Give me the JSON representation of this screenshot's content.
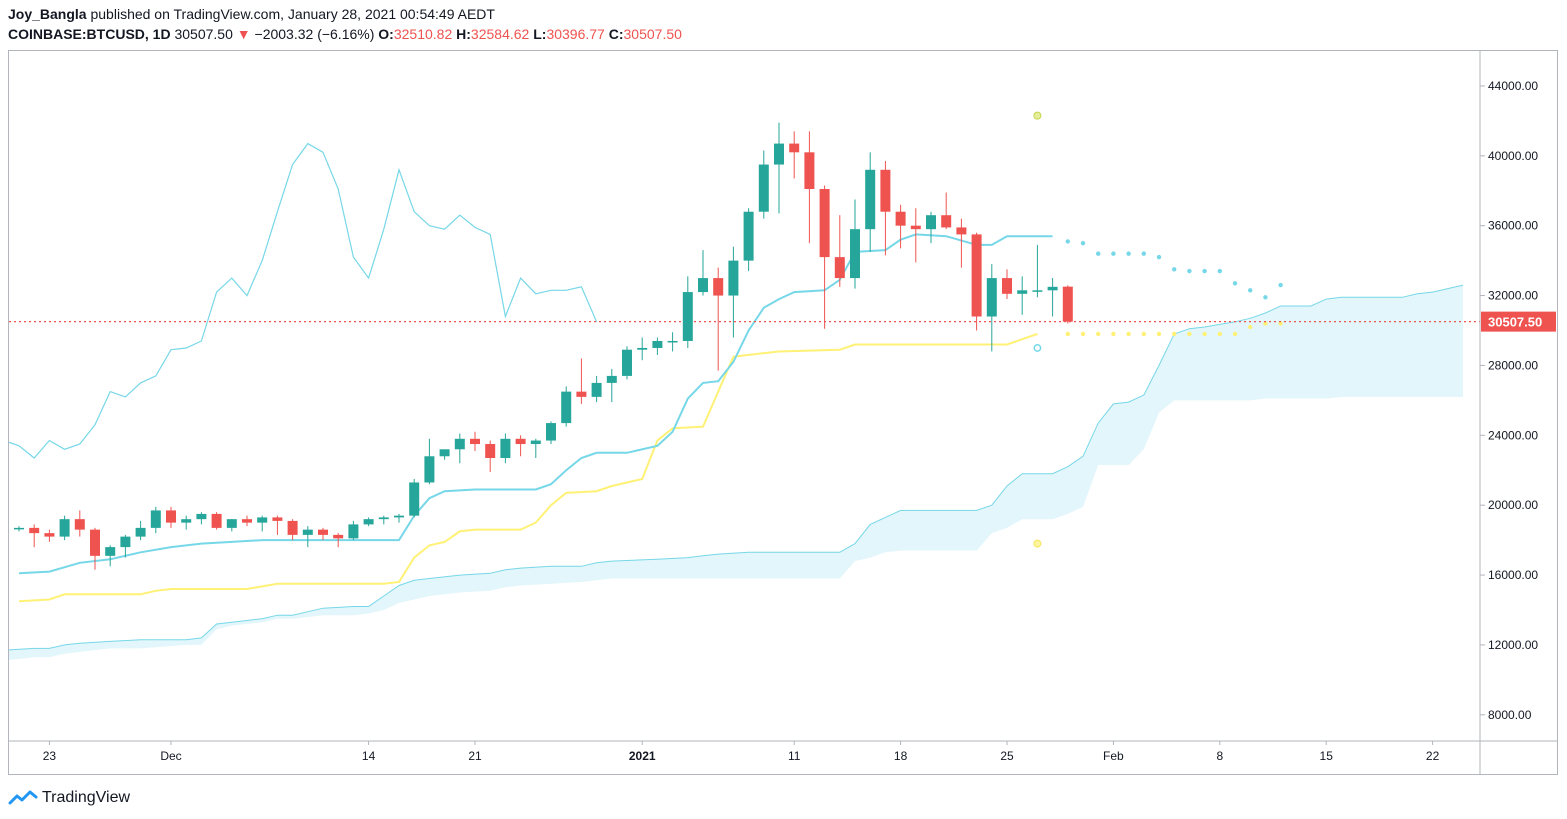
{
  "header": {
    "user": "Joy_Bangla",
    "published": "published on TradingView.com, January 28, 2021 00:54:49 AEDT",
    "symbol": "COINBASE:BTCUSD, 1D",
    "last": "30507.50",
    "change": "−2003.32 (−6.16%)",
    "o_label": "O:",
    "o_value": "32510.82",
    "h_label": "H:",
    "h_value": "32584.62",
    "l_label": "L:",
    "l_value": "30396.77",
    "c_label": "C:",
    "c_value": "30507.50"
  },
  "brand": {
    "name": "TradingView"
  },
  "colors": {
    "up": "#26a69a",
    "down": "#ef5350",
    "cyan": "#76d7e8",
    "yellow": "#fff176",
    "cloud": "#e3f6fb",
    "price_line": "#ef5350",
    "axis_text": "#131722"
  },
  "chart_data": {
    "type": "candlestick",
    "title": "",
    "ylim": [
      6500,
      46000
    ],
    "y_ticks": [
      8000,
      12000,
      16000,
      20000,
      24000,
      28000,
      32000,
      36000,
      40000,
      44000
    ],
    "y_tick_labels": [
      "8000.00",
      "12000.00",
      "16000.00",
      "20000.00",
      "24000.00",
      "28000.00",
      "32000.00",
      "36000.00",
      "40000.00",
      "44000.00"
    ],
    "x_ticks": [
      {
        "i": 2,
        "label": "23"
      },
      {
        "i": 10,
        "label": "Dec"
      },
      {
        "i": 23,
        "label": "14"
      },
      {
        "i": 30,
        "label": "21"
      },
      {
        "i": 41,
        "label": "2021"
      },
      {
        "i": 51,
        "label": "11"
      },
      {
        "i": 58,
        "label": "18"
      },
      {
        "i": 65,
        "label": "25"
      },
      {
        "i": 72,
        "label": "Feb"
      },
      {
        "i": 79,
        "label": "8"
      },
      {
        "i": 86,
        "label": "15"
      },
      {
        "i": 93,
        "label": "22"
      }
    ],
    "last_price": 30507.5,
    "last_price_label": "30507.50",
    "candles": [
      [
        18700,
        18800,
        18500,
        18700
      ],
      [
        18700,
        18900,
        17600,
        18400
      ],
      [
        18400,
        18600,
        17900,
        18200
      ],
      [
        18200,
        19400,
        18000,
        19200
      ],
      [
        19200,
        19700,
        18200,
        18600
      ],
      [
        18600,
        18700,
        16300,
        17100
      ],
      [
        17100,
        17700,
        16500,
        17600
      ],
      [
        17600,
        18300,
        17000,
        18200
      ],
      [
        18200,
        19100,
        18000,
        18700
      ],
      [
        18700,
        19900,
        18400,
        19700
      ],
      [
        19700,
        19900,
        18700,
        19000
      ],
      [
        19000,
        19400,
        18600,
        19200
      ],
      [
        19200,
        19600,
        18900,
        19500
      ],
      [
        19500,
        19600,
        18600,
        18700
      ],
      [
        18700,
        19200,
        18500,
        19200
      ],
      [
        19200,
        19400,
        18800,
        19000
      ],
      [
        19000,
        19400,
        18500,
        19300
      ],
      [
        19300,
        19400,
        18300,
        19100
      ],
      [
        19100,
        19200,
        18000,
        18300
      ],
      [
        18300,
        18800,
        17600,
        18600
      ],
      [
        18600,
        18700,
        18000,
        18300
      ],
      [
        18300,
        18400,
        17600,
        18100
      ],
      [
        18100,
        19100,
        18000,
        18900
      ],
      [
        18900,
        19300,
        18800,
        19200
      ],
      [
        19200,
        19400,
        18900,
        19300
      ],
      [
        19300,
        19500,
        19000,
        19400
      ],
      [
        19400,
        21500,
        19300,
        21300
      ],
      [
        21300,
        23800,
        21200,
        22800
      ],
      [
        22800,
        23100,
        22600,
        23200
      ],
      [
        23200,
        24100,
        22400,
        23800
      ],
      [
        23800,
        24200,
        23100,
        23500
      ],
      [
        23500,
        23700,
        21900,
        22700
      ],
      [
        22700,
        24100,
        22400,
        23800
      ],
      [
        23800,
        24000,
        22800,
        23500
      ],
      [
        23500,
        23800,
        22700,
        23700
      ],
      [
        23700,
        24800,
        23500,
        24700
      ],
      [
        24700,
        26800,
        24500,
        26500
      ],
      [
        26500,
        28400,
        25800,
        26200
      ],
      [
        26200,
        27400,
        25900,
        27000
      ],
      [
        27000,
        27800,
        25900,
        27400
      ],
      [
        27400,
        29100,
        27200,
        28900
      ],
      [
        28900,
        29600,
        28300,
        29000
      ],
      [
        29000,
        29600,
        28600,
        29400
      ],
      [
        29400,
        29900,
        28800,
        29400
      ],
      [
        29400,
        33100,
        29000,
        32200
      ],
      [
        32200,
        34600,
        32000,
        33000
      ],
      [
        33000,
        33600,
        27700,
        32000
      ],
      [
        32000,
        34800,
        29600,
        34000
      ],
      [
        34000,
        37000,
        33400,
        36800
      ],
      [
        36800,
        40300,
        36400,
        39500
      ],
      [
        39500,
        41900,
        36700,
        40700
      ],
      [
        40700,
        41400,
        38700,
        40200
      ],
      [
        40200,
        41400,
        35000,
        38100
      ],
      [
        38100,
        38300,
        30100,
        34200
      ],
      [
        34200,
        36600,
        32500,
        33000
      ],
      [
        33000,
        37500,
        32400,
        35800
      ],
      [
        35800,
        40200,
        34500,
        39200
      ],
      [
        39200,
        39700,
        34300,
        36800
      ],
      [
        36800,
        37200,
        34700,
        36000
      ],
      [
        36000,
        37000,
        33900,
        35800
      ],
      [
        35800,
        36800,
        35000,
        36600
      ],
      [
        36600,
        37900,
        35800,
        35900
      ],
      [
        35900,
        36400,
        33600,
        35500
      ],
      [
        35500,
        35600,
        30000,
        30800
      ],
      [
        30800,
        33800,
        28800,
        33000
      ],
      [
        33000,
        33500,
        31800,
        32100
      ],
      [
        32100,
        33100,
        30900,
        32300
      ],
      [
        32300,
        34900,
        31900,
        32300
      ],
      [
        32300,
        33000,
        30800,
        32500
      ],
      [
        32510.82,
        32584.62,
        30396.77,
        30507.5
      ]
    ],
    "tenkan": [
      [
        0,
        16100
      ],
      [
        2,
        16200
      ],
      [
        4,
        16700
      ],
      [
        6,
        16900
      ],
      [
        8,
        17300
      ],
      [
        10,
        17600
      ],
      [
        12,
        17800
      ],
      [
        14,
        17900
      ],
      [
        16,
        18000
      ],
      [
        18,
        18000
      ],
      [
        20,
        18000
      ],
      [
        22,
        18000
      ],
      [
        24,
        18000
      ],
      [
        25,
        18000
      ],
      [
        26,
        19400
      ],
      [
        27,
        20400
      ],
      [
        28,
        20800
      ],
      [
        30,
        20900
      ],
      [
        32,
        20900
      ],
      [
        34,
        20900
      ],
      [
        35,
        21200
      ],
      [
        36,
        22000
      ],
      [
        37,
        22700
      ],
      [
        38,
        23000
      ],
      [
        40,
        23000
      ],
      [
        42,
        23400
      ],
      [
        43,
        24200
      ],
      [
        44,
        26100
      ],
      [
        45,
        27000
      ],
      [
        46,
        27100
      ],
      [
        47,
        28200
      ],
      [
        48,
        30000
      ],
      [
        49,
        31300
      ],
      [
        50,
        31800
      ],
      [
        51,
        32200
      ],
      [
        53,
        32300
      ],
      [
        54,
        32900
      ],
      [
        55,
        34500
      ],
      [
        57,
        34600
      ],
      [
        58,
        35200
      ],
      [
        59,
        35500
      ],
      [
        61,
        35400
      ],
      [
        63,
        34900
      ],
      [
        64,
        34900
      ],
      [
        65,
        35400
      ],
      [
        68,
        35400
      ]
    ],
    "kijun": [
      [
        0,
        14500
      ],
      [
        2,
        14600
      ],
      [
        3,
        14900
      ],
      [
        8,
        14900
      ],
      [
        9,
        15100
      ],
      [
        10,
        15200
      ],
      [
        15,
        15200
      ],
      [
        17,
        15500
      ],
      [
        18,
        15500
      ],
      [
        24,
        15500
      ],
      [
        25,
        15600
      ],
      [
        26,
        17000
      ],
      [
        27,
        17700
      ],
      [
        28,
        17900
      ],
      [
        29,
        18500
      ],
      [
        30,
        18600
      ],
      [
        33,
        18600
      ],
      [
        34,
        19000
      ],
      [
        35,
        20000
      ],
      [
        36,
        20700
      ],
      [
        38,
        20800
      ],
      [
        39,
        21100
      ],
      [
        41,
        21500
      ],
      [
        42,
        23700
      ],
      [
        43,
        24400
      ],
      [
        45,
        24500
      ],
      [
        46,
        26500
      ],
      [
        47,
        28500
      ],
      [
        48,
        28600
      ],
      [
        50,
        28800
      ],
      [
        54,
        28900
      ],
      [
        55,
        29200
      ],
      [
        60,
        29200
      ],
      [
        65,
        29200
      ],
      [
        66,
        29500
      ],
      [
        67,
        29800
      ]
    ],
    "chikou": [
      [
        -1,
        23700
      ],
      [
        0,
        23400
      ],
      [
        1,
        22700
      ],
      [
        2,
        23700
      ],
      [
        3,
        23200
      ],
      [
        4,
        23500
      ],
      [
        5,
        24600
      ],
      [
        6,
        26500
      ],
      [
        7,
        26200
      ],
      [
        8,
        27000
      ],
      [
        9,
        27400
      ],
      [
        10,
        28900
      ],
      [
        11,
        29000
      ],
      [
        12,
        29400
      ],
      [
        13,
        32200
      ],
      [
        14,
        33000
      ],
      [
        15,
        32000
      ],
      [
        16,
        34000
      ],
      [
        17,
        36800
      ],
      [
        18,
        39500
      ],
      [
        19,
        40700
      ],
      [
        20,
        40200
      ],
      [
        21,
        38100
      ],
      [
        22,
        34200
      ],
      [
        23,
        33000
      ],
      [
        24,
        35800
      ],
      [
        25,
        39200
      ],
      [
        26,
        36800
      ],
      [
        27,
        36000
      ],
      [
        28,
        35800
      ],
      [
        29,
        36600
      ],
      [
        30,
        35900
      ],
      [
        31,
        35500
      ],
      [
        32,
        30800
      ],
      [
        33,
        33000
      ],
      [
        34,
        32100
      ],
      [
        35,
        32300
      ],
      [
        36,
        32300
      ],
      [
        37,
        32500
      ],
      [
        38,
        30500
      ]
    ],
    "senkou_a": [
      [
        -1,
        11700
      ],
      [
        1,
        11800
      ],
      [
        2,
        11800
      ],
      [
        3,
        12000
      ],
      [
        4,
        12100
      ],
      [
        6,
        12200
      ],
      [
        8,
        12300
      ],
      [
        11,
        12300
      ],
      [
        12,
        12400
      ],
      [
        13,
        13200
      ],
      [
        14,
        13300
      ],
      [
        16,
        13500
      ],
      [
        17,
        13700
      ],
      [
        18,
        13700
      ],
      [
        19,
        13900
      ],
      [
        20,
        14100
      ],
      [
        22,
        14200
      ],
      [
        23,
        14200
      ],
      [
        24,
        14800
      ],
      [
        25,
        15400
      ],
      [
        26,
        15700
      ],
      [
        27,
        15800
      ],
      [
        29,
        16000
      ],
      [
        31,
        16100
      ],
      [
        32,
        16300
      ],
      [
        33,
        16400
      ],
      [
        35,
        16500
      ],
      [
        37,
        16500
      ],
      [
        38,
        16700
      ],
      [
        39,
        16800
      ],
      [
        42,
        16900
      ],
      [
        44,
        17000
      ],
      [
        45,
        17100
      ],
      [
        46,
        17200
      ],
      [
        48,
        17300
      ],
      [
        53,
        17300
      ],
      [
        54,
        17300
      ],
      [
        55,
        17800
      ],
      [
        56,
        18900
      ],
      [
        57,
        19300
      ],
      [
        58,
        19700
      ],
      [
        60,
        19700
      ],
      [
        63,
        19700
      ],
      [
        64,
        20000
      ],
      [
        65,
        21100
      ],
      [
        66,
        21800
      ],
      [
        68,
        21800
      ],
      [
        69,
        22200
      ],
      [
        70,
        22800
      ],
      [
        71,
        24700
      ],
      [
        72,
        25800
      ],
      [
        73,
        25900
      ],
      [
        74,
        26300
      ],
      [
        75,
        28000
      ],
      [
        76,
        29800
      ],
      [
        77,
        30100
      ],
      [
        78,
        30200
      ],
      [
        80,
        30500
      ],
      [
        81,
        30700
      ],
      [
        82,
        31000
      ],
      [
        83,
        31400
      ],
      [
        85,
        31400
      ],
      [
        86,
        31800
      ],
      [
        87,
        31900
      ],
      [
        91,
        31900
      ],
      [
        92,
        32100
      ],
      [
        93,
        32200
      ],
      [
        94,
        32400
      ],
      [
        95,
        32600
      ]
    ],
    "senkou_b": [
      [
        -1,
        11100
      ],
      [
        1,
        11300
      ],
      [
        2,
        11300
      ],
      [
        3,
        11500
      ],
      [
        4,
        11600
      ],
      [
        6,
        11800
      ],
      [
        8,
        11800
      ],
      [
        11,
        12000
      ],
      [
        12,
        12000
      ],
      [
        13,
        12900
      ],
      [
        14,
        13100
      ],
      [
        16,
        13300
      ],
      [
        17,
        13500
      ],
      [
        18,
        13500
      ],
      [
        19,
        13600
      ],
      [
        20,
        13700
      ],
      [
        22,
        13700
      ],
      [
        23,
        13800
      ],
      [
        24,
        14000
      ],
      [
        25,
        14400
      ],
      [
        26,
        14600
      ],
      [
        27,
        14800
      ],
      [
        29,
        15000
      ],
      [
        31,
        15100
      ],
      [
        32,
        15300
      ],
      [
        33,
        15400
      ],
      [
        35,
        15500
      ],
      [
        37,
        15600
      ],
      [
        38,
        15700
      ],
      [
        39,
        15800
      ],
      [
        42,
        15800
      ],
      [
        44,
        15800
      ],
      [
        45,
        15800
      ],
      [
        46,
        15800
      ],
      [
        48,
        15800
      ],
      [
        53,
        15800
      ],
      [
        54,
        15800
      ],
      [
        55,
        16800
      ],
      [
        56,
        17000
      ],
      [
        57,
        17300
      ],
      [
        58,
        17400
      ],
      [
        60,
        17400
      ],
      [
        63,
        17400
      ],
      [
        64,
        18400
      ],
      [
        65,
        18700
      ],
      [
        66,
        19200
      ],
      [
        68,
        19200
      ],
      [
        69,
        19500
      ],
      [
        70,
        19900
      ],
      [
        71,
        22300
      ],
      [
        72,
        22300
      ],
      [
        73,
        22300
      ],
      [
        74,
        23200
      ],
      [
        75,
        25300
      ],
      [
        76,
        26000
      ],
      [
        77,
        26000
      ],
      [
        78,
        26000
      ],
      [
        80,
        26000
      ],
      [
        81,
        26000
      ],
      [
        82,
        26100
      ],
      [
        83,
        26100
      ],
      [
        85,
        26100
      ],
      [
        86,
        26100
      ],
      [
        87,
        26200
      ],
      [
        91,
        26200
      ],
      [
        92,
        26200
      ],
      [
        93,
        26200
      ],
      [
        94,
        26200
      ],
      [
        95,
        26200
      ]
    ],
    "tenkan_future": [
      [
        69,
        35100
      ],
      [
        70,
        35000
      ],
      [
        71,
        34400
      ],
      [
        72,
        34400
      ],
      [
        73,
        34400
      ],
      [
        74,
        34400
      ],
      [
        75,
        34200
      ],
      [
        76,
        33500
      ],
      [
        77,
        33400
      ],
      [
        78,
        33400
      ],
      [
        79,
        33400
      ],
      [
        80,
        32700
      ],
      [
        81,
        32300
      ],
      [
        82,
        31900
      ],
      [
        83,
        32600
      ]
    ],
    "kijun_future": [
      [
        69,
        29800
      ],
      [
        70,
        29800
      ],
      [
        71,
        29800
      ],
      [
        72,
        29800
      ],
      [
        73,
        29800
      ],
      [
        74,
        29800
      ],
      [
        75,
        29800
      ],
      [
        76,
        29800
      ],
      [
        77,
        29800
      ],
      [
        78,
        29800
      ],
      [
        79,
        29800
      ],
      [
        80,
        29800
      ],
      [
        81,
        30200
      ],
      [
        82,
        30400
      ],
      [
        83,
        30400
      ]
    ],
    "pivot_high": [
      67,
      42300
    ],
    "pivot_low": [
      67,
      17800
    ],
    "small_cyan_dot": [
      67,
      29000
    ]
  }
}
